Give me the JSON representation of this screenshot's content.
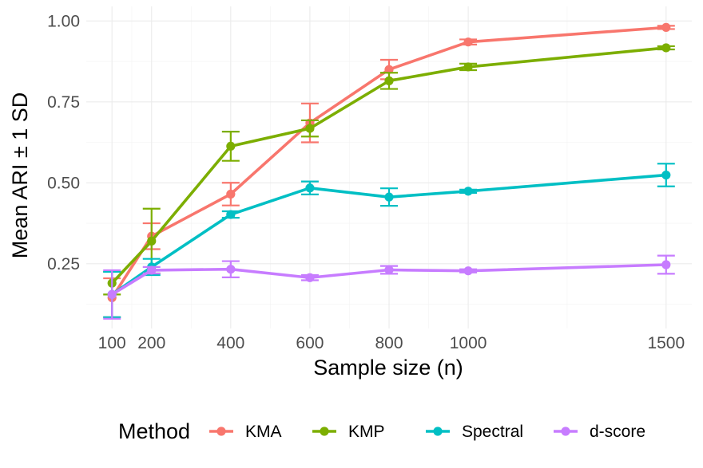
{
  "chart_data": {
    "type": "line",
    "title": "",
    "xlabel": "Sample size (n)",
    "ylabel": "Mean ARI ± 1 SD",
    "x": [
      100,
      200,
      400,
      600,
      800,
      1000,
      1500
    ],
    "x_tick_labels": [
      "100",
      "200",
      "400",
      "600",
      "800",
      "1000",
      "1500"
    ],
    "xlim": [
      35,
      1565
    ],
    "ylim": [
      0.05,
      1.045
    ],
    "y_ticks": [
      0.25,
      0.5,
      0.75,
      1.0
    ],
    "y_tick_labels": [
      "0.25",
      "0.50",
      "0.75",
      "1.00"
    ],
    "grid": true,
    "legend_title": "Method",
    "legend_position": "bottom",
    "series": [
      {
        "name": "KMA",
        "color": "#F8766D",
        "values": [
          0.145,
          0.335,
          0.465,
          0.685,
          0.85,
          0.935,
          0.98
        ],
        "sd": [
          0.06,
          0.04,
          0.035,
          0.06,
          0.03,
          0.008,
          0.005
        ]
      },
      {
        "name": "KMP",
        "color": "#7CAE00",
        "values": [
          0.19,
          0.32,
          0.613,
          0.668,
          0.815,
          0.858,
          0.917
        ],
        "sd": [
          0.035,
          0.1,
          0.045,
          0.025,
          0.025,
          0.01,
          0.005
        ]
      },
      {
        "name": "Spectral",
        "color": "#00BFC4",
        "values": [
          0.155,
          0.24,
          0.402,
          0.484,
          0.456,
          0.474,
          0.524
        ],
        "sd": [
          0.07,
          0.025,
          0.01,
          0.02,
          0.027,
          0.005,
          0.035
        ]
      },
      {
        "name": "d-score",
        "color": "#C77CFF",
        "values": [
          0.155,
          0.23,
          0.233,
          0.207,
          0.231,
          0.228,
          0.247
        ],
        "sd": [
          0.075,
          0.01,
          0.025,
          0.008,
          0.012,
          0.005,
          0.028
        ]
      }
    ]
  }
}
